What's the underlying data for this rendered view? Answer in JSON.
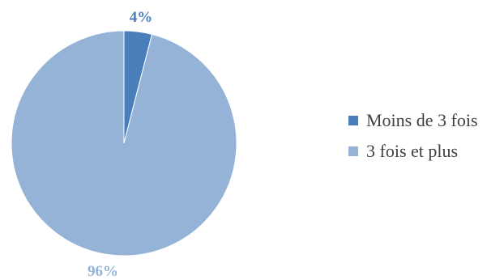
{
  "chart_data": {
    "type": "pie",
    "series": [
      {
        "label": "Moins de 3 fois",
        "value": 4,
        "display": "4%",
        "color": "#4a7ebb",
        "label_color": "#4a7ebb"
      },
      {
        "label": "3 fois et plus",
        "value": 96,
        "display": "96%",
        "color": "#95b3d7",
        "label_color": "#95b3d7"
      }
    ],
    "legend_position": "right"
  }
}
